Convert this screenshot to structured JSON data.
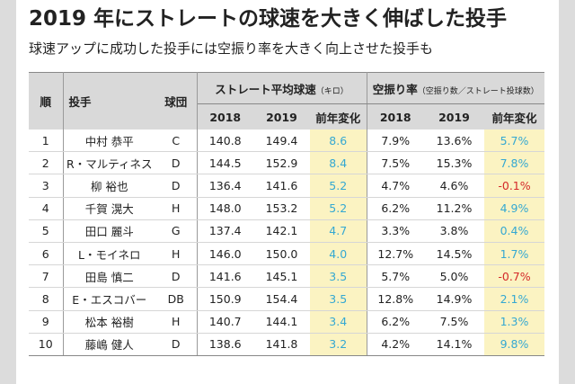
{
  "title": "2019 年にストレートの球速を大きく伸ばした投手",
  "subtitle": "球速アップに成功した投手には空振り率を大きく向上させた投手も",
  "table": {
    "headers": {
      "rank": "順",
      "pitcher": "投手",
      "team": "球団",
      "speed_group": "ストレート平均球速",
      "speed_unit": "（キロ）",
      "whiff_group": "空振り率",
      "whiff_note": "（空振り数／ストレート投球数）",
      "y2018": "2018",
      "y2019": "2019",
      "change": "前年変化"
    },
    "rows": [
      {
        "rank": "1",
        "name": "中村 恭平",
        "team": "C",
        "s2018": "140.8",
        "s2019": "149.4",
        "schg": "8.6",
        "w2018": "7.9%",
        "w2019": "13.6%",
        "wchg": "5.7%",
        "wsign": "pos"
      },
      {
        "rank": "2",
        "name": "R・マルティネス",
        "team": "D",
        "s2018": "144.5",
        "s2019": "152.9",
        "schg": "8.4",
        "w2018": "7.5%",
        "w2019": "15.3%",
        "wchg": "7.8%",
        "wsign": "pos"
      },
      {
        "rank": "3",
        "name": "柳 裕也",
        "team": "D",
        "s2018": "136.4",
        "s2019": "141.6",
        "schg": "5.2",
        "w2018": "4.7%",
        "w2019": "4.6%",
        "wchg": "-0.1%",
        "wsign": "neg"
      },
      {
        "rank": "4",
        "name": "千賀 滉大",
        "team": "H",
        "s2018": "148.0",
        "s2019": "153.2",
        "schg": "5.2",
        "w2018": "6.2%",
        "w2019": "11.2%",
        "wchg": "4.9%",
        "wsign": "pos"
      },
      {
        "rank": "5",
        "name": "田口 麗斗",
        "team": "G",
        "s2018": "137.4",
        "s2019": "142.1",
        "schg": "4.7",
        "w2018": "3.3%",
        "w2019": "3.8%",
        "wchg": "0.4%",
        "wsign": "pos"
      },
      {
        "rank": "6",
        "name": "L・モイネロ",
        "team": "H",
        "s2018": "146.0",
        "s2019": "150.0",
        "schg": "4.0",
        "w2018": "12.7%",
        "w2019": "14.5%",
        "wchg": "1.7%",
        "wsign": "pos"
      },
      {
        "rank": "7",
        "name": "田島 慎二",
        "team": "D",
        "s2018": "141.6",
        "s2019": "145.1",
        "schg": "3.5",
        "w2018": "5.7%",
        "w2019": "5.0%",
        "wchg": "-0.7%",
        "wsign": "neg"
      },
      {
        "rank": "8",
        "name": "E・エスコバー",
        "team": "DB",
        "s2018": "150.9",
        "s2019": "154.4",
        "schg": "3.5",
        "w2018": "12.8%",
        "w2019": "14.9%",
        "wchg": "2.1%",
        "wsign": "pos"
      },
      {
        "rank": "9",
        "name": "松本 裕樹",
        "team": "H",
        "s2018": "140.7",
        "s2019": "144.1",
        "schg": "3.4",
        "w2018": "6.2%",
        "w2019": "7.5%",
        "wchg": "1.3%",
        "wsign": "pos"
      },
      {
        "rank": "10",
        "name": "藤嶋 健人",
        "team": "D",
        "s2018": "138.6",
        "s2019": "141.8",
        "schg": "3.2",
        "w2018": "4.2%",
        "w2019": "14.1%",
        "wchg": "9.8%",
        "wsign": "pos"
      }
    ]
  }
}
